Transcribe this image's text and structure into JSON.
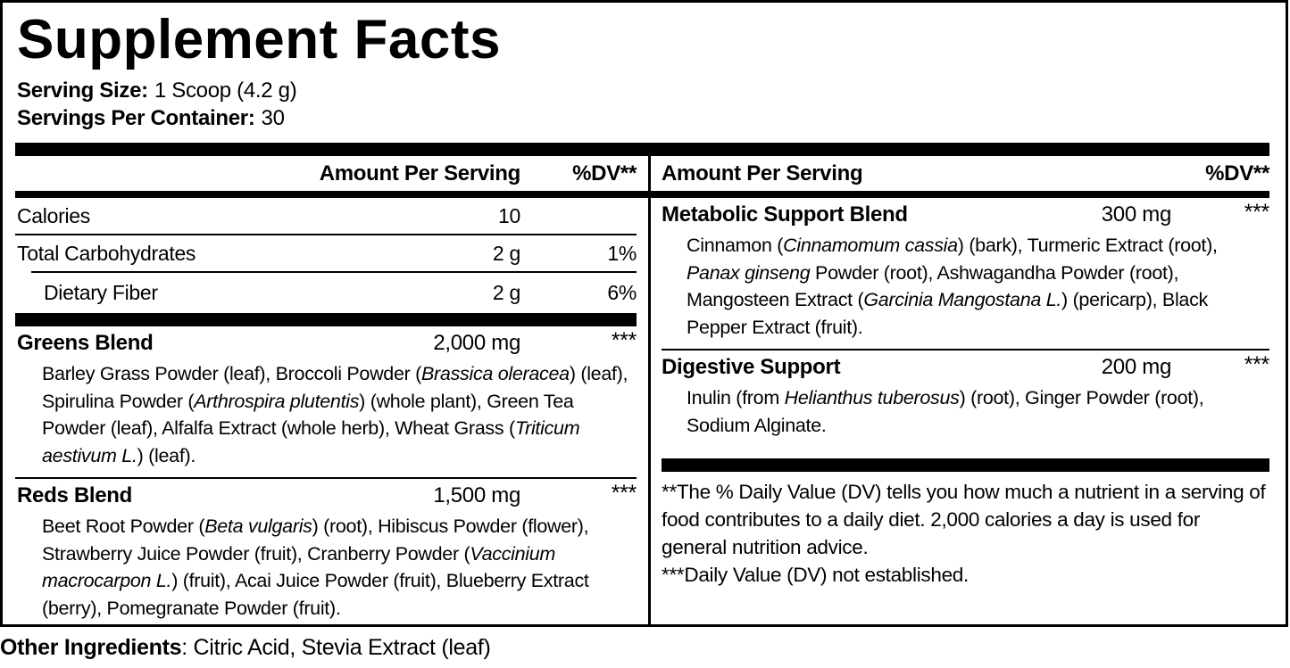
{
  "label": {
    "title": "Supplement Facts",
    "serving_size_label": "Serving Size:",
    "serving_size_value": "1 Scoop (4.2 g)",
    "servings_per_container_label": "Servings Per Container:",
    "servings_per_container_value": "30"
  },
  "left": {
    "header": {
      "amount": "Amount Per Serving",
      "dv": "%DV**"
    },
    "rows": [
      {
        "name": "Calories",
        "amount": "10",
        "dv": ""
      },
      {
        "name": "Total Carbohydrates",
        "amount": "2 g",
        "dv": "1%"
      },
      {
        "name": "Dietary Fiber",
        "amount": "2 g",
        "dv": "6%"
      }
    ],
    "blends": [
      {
        "name": "Greens Blend",
        "amount": "2,000 mg",
        "dv": "***",
        "ingredients": [
          {
            "t": "Barley Grass Powder (leaf), Broccoli Powder ("
          },
          {
            "t": "Brassica oleracea",
            "i": true
          },
          {
            "t": ") (leaf), Spirulina Powder ("
          },
          {
            "t": "Arthrospira plutentis",
            "i": true
          },
          {
            "t": ") (whole plant), Green Tea Powder (leaf), Alfalfa Extract (whole herb), Wheat Grass ("
          },
          {
            "t": "Triticum aestivum L.",
            "i": true
          },
          {
            "t": ") (leaf)."
          }
        ]
      },
      {
        "name": "Reds Blend",
        "amount": "1,500 mg",
        "dv": "***",
        "ingredients": [
          {
            "t": "Beet Root Powder ("
          },
          {
            "t": "Beta vulgaris",
            "i": true
          },
          {
            "t": ") (root), Hibiscus Powder (flower), Strawberry Juice Powder (fruit), Cranberry Powder ("
          },
          {
            "t": "Vaccinium macrocarpon L.",
            "i": true
          },
          {
            "t": ") (fruit), Acai Juice Powder (fruit), Blueberry Extract (berry), Pomegranate Powder (fruit)."
          }
        ]
      }
    ]
  },
  "right": {
    "header": {
      "amount": "Amount Per Serving",
      "dv": "%DV**"
    },
    "blends": [
      {
        "name": "Metabolic Support Blend",
        "amount": "300 mg",
        "dv": "***",
        "ingredients": [
          {
            "t": "Cinnamon ("
          },
          {
            "t": "Cinnamomum cassia",
            "i": true
          },
          {
            "t": ") (bark), Turmeric Extract (root), "
          },
          {
            "t": "Panax ginseng",
            "i": true
          },
          {
            "t": " Powder (root), Ashwagandha Powder (root), Mangosteen Extract ("
          },
          {
            "t": "Garcinia Mangostana L.",
            "i": true
          },
          {
            "t": ") (pericarp), Black Pepper Extract (fruit)."
          }
        ]
      },
      {
        "name": "Digestive Support",
        "amount": "200 mg",
        "dv": "***",
        "ingredients": [
          {
            "t": "Inulin (from "
          },
          {
            "t": "Helianthus tuberosus",
            "i": true
          },
          {
            "t": ") (root), Ginger Powder (root), Sodium Alginate."
          }
        ]
      }
    ],
    "footnotes": [
      "**The % Daily Value (DV) tells you how much a nutrient in a serving of food contributes to a daily diet. 2,000 calories a day is used for general nutrition advice.",
      "***Daily Value (DV) not established."
    ]
  },
  "other_ingredients": {
    "label": "Other Ingredients",
    "value": ": Citric Acid, Stevia Extract (leaf)"
  }
}
